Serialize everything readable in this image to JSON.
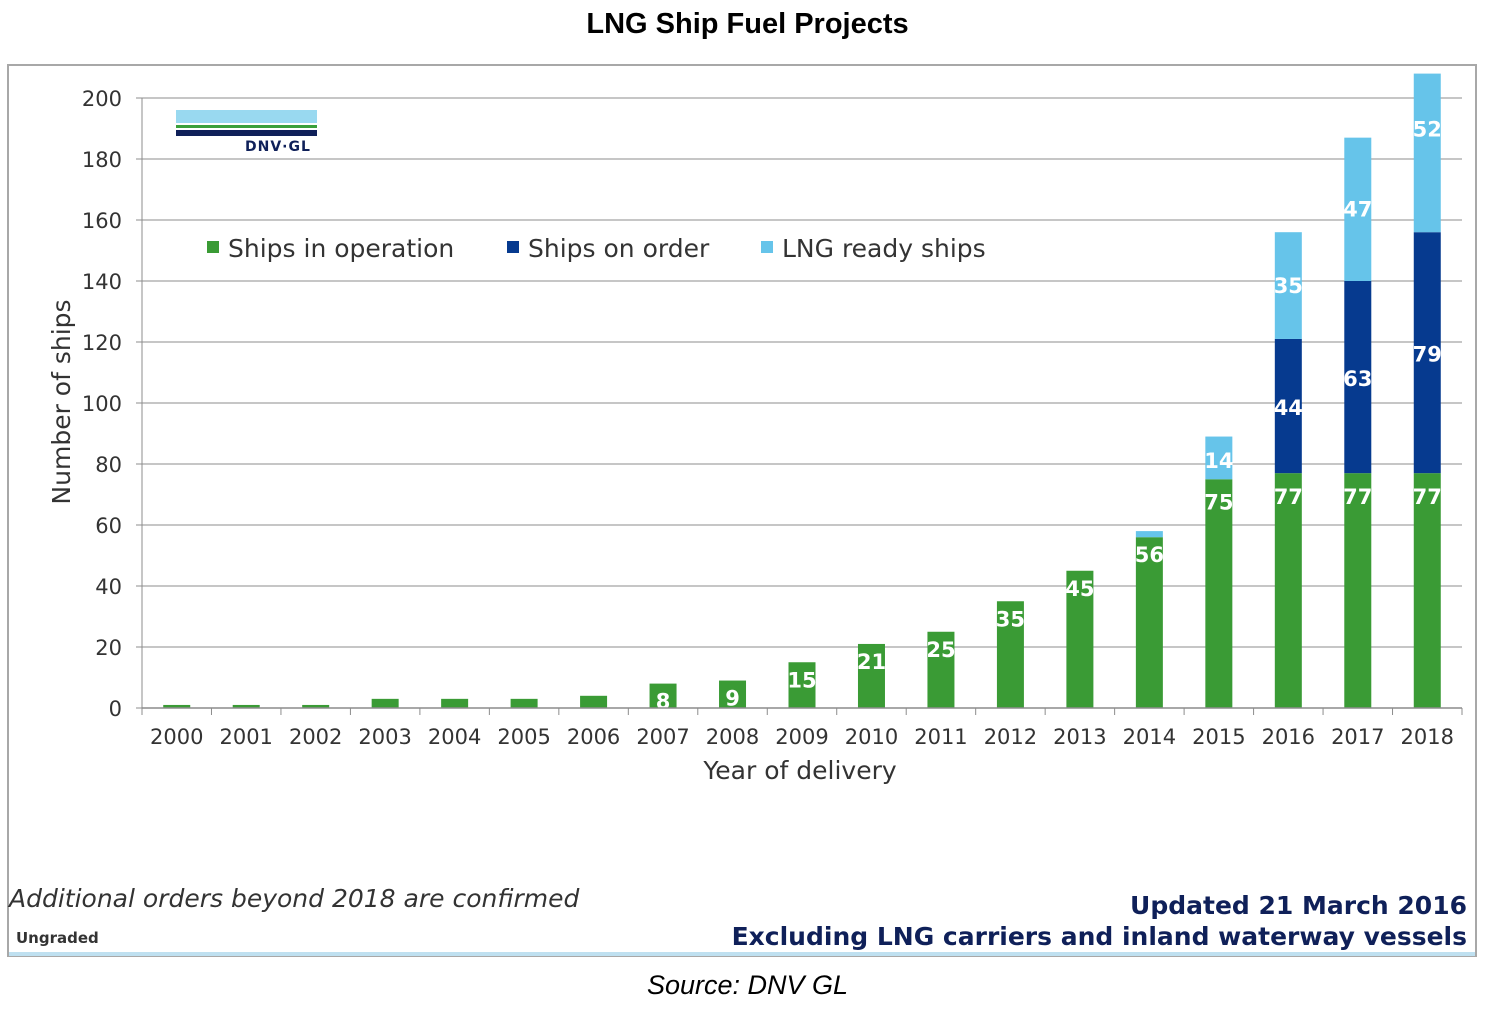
{
  "title": "LNG Ship Fuel Projects",
  "source": "Source: DNV GL",
  "logo": {
    "text": "DNV·GL",
    "colors": [
      "#99d9f0",
      "#3aa03a",
      "#0f2059"
    ]
  },
  "notes": {
    "left": "Additional orders beyond 2018 are confirmed",
    "ungraded": "Ungraded",
    "updated": "Updated 21 March 2016",
    "excluding": "Excluding LNG carriers and inland waterway vessels"
  },
  "chart_data": {
    "type": "bar",
    "stacked": true,
    "categories": [
      "2000",
      "2001",
      "2002",
      "2003",
      "2004",
      "2005",
      "2006",
      "2007",
      "2008",
      "2009",
      "2010",
      "2011",
      "2012",
      "2013",
      "2014",
      "2015",
      "2016",
      "2017",
      "2018"
    ],
    "series": [
      {
        "name": "Ships in operation",
        "color": "#3a9b35",
        "values": [
          1,
          1,
          1,
          3,
          3,
          3,
          4,
          8,
          9,
          15,
          21,
          25,
          35,
          45,
          56,
          75,
          77,
          77,
          77
        ],
        "labels": [
          "",
          "",
          "",
          "",
          "",
          "",
          "",
          "8",
          "9",
          "15",
          "21",
          "25",
          "35",
          "45",
          "56",
          "75",
          "77",
          "77",
          "77"
        ]
      },
      {
        "name": "Ships on order",
        "color": "#063a8f",
        "values": [
          0,
          0,
          0,
          0,
          0,
          0,
          0,
          0,
          0,
          0,
          0,
          0,
          0,
          0,
          0,
          0,
          44,
          63,
          79
        ],
        "labels": [
          "",
          "",
          "",
          "",
          "",
          "",
          "",
          "",
          "",
          "",
          "",
          "",
          "",
          "",
          "",
          "",
          "44",
          "63",
          "79"
        ]
      },
      {
        "name": "LNG ready ships",
        "color": "#66c4ea",
        "values": [
          0,
          0,
          0,
          0,
          0,
          0,
          0,
          0,
          0,
          0,
          0,
          0,
          0,
          0,
          2,
          14,
          35,
          47,
          52
        ],
        "labels": [
          "",
          "",
          "",
          "",
          "",
          "",
          "",
          "",
          "",
          "",
          "",
          "",
          "",
          "",
          "",
          "14",
          "35",
          "47",
          "52"
        ]
      }
    ],
    "xlabel": "Year of delivery",
    "ylabel": "Number of ships",
    "ylim": [
      0,
      200
    ],
    "yticks": [
      "0",
      "20",
      "40",
      "60",
      "80",
      "100",
      "120",
      "140",
      "160",
      "180",
      "200"
    ],
    "grid": true,
    "legend": "top-left"
  }
}
